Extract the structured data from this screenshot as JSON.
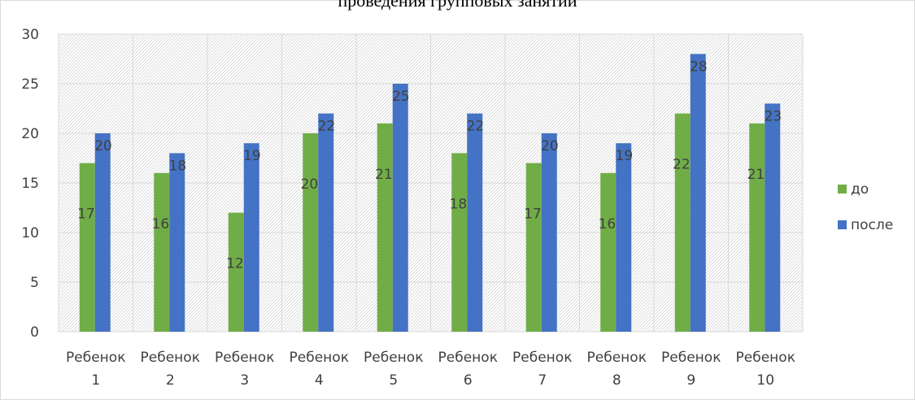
{
  "chart_data": {
    "type": "bar",
    "title": "проведения групповых занятий",
    "categories": [
      [
        "Ребенок",
        "1"
      ],
      [
        "Ребенок",
        "2"
      ],
      [
        "Ребенок",
        "3"
      ],
      [
        "Ребенок",
        "4"
      ],
      [
        "Ребенок",
        "5"
      ],
      [
        "Ребенок",
        "6"
      ],
      [
        "Ребенок",
        "7"
      ],
      [
        "Ребенок",
        "8"
      ],
      [
        "Ребенок",
        "9"
      ],
      [
        "Ребенок",
        "10"
      ]
    ],
    "series": [
      {
        "name": "до",
        "color": "#70ad47",
        "values": [
          17,
          16,
          12,
          20,
          21,
          18,
          17,
          16,
          22,
          21
        ]
      },
      {
        "name": "после",
        "color": "#4472c4",
        "values": [
          20,
          18,
          19,
          22,
          25,
          22,
          20,
          19,
          28,
          23
        ]
      }
    ],
    "ylim": [
      0,
      30
    ],
    "yticks": [
      0,
      5,
      10,
      15,
      20,
      25,
      30
    ],
    "grid": true,
    "legend_position": "right",
    "xlabel": "",
    "ylabel": ""
  }
}
